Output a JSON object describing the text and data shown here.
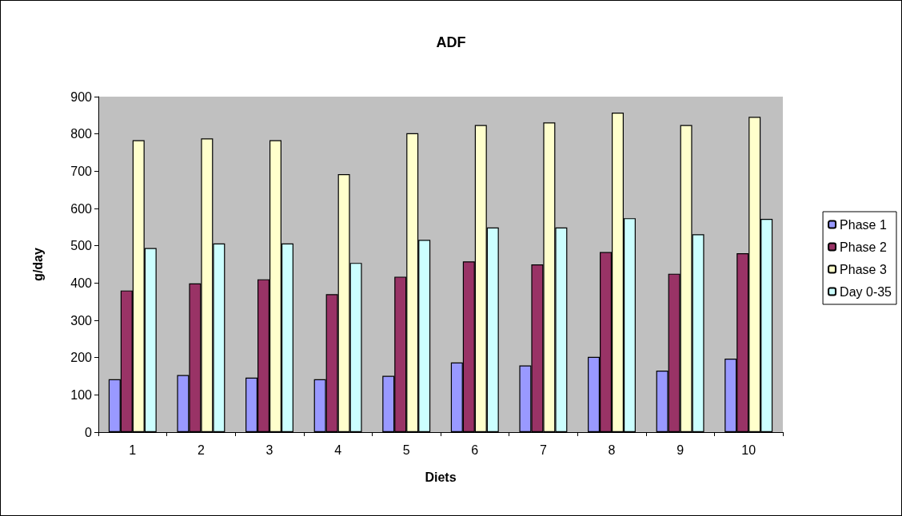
{
  "chart_data": {
    "type": "bar",
    "title": "ADF",
    "xlabel": "Diets",
    "ylabel": "g/day",
    "categories": [
      "1",
      "2",
      "3",
      "4",
      "5",
      "6",
      "7",
      "8",
      "9",
      "10"
    ],
    "series": [
      {
        "name": "Phase 1",
        "color": "#9999ff",
        "values": [
          142,
          153,
          146,
          142,
          151,
          187,
          179,
          202,
          165,
          197
        ]
      },
      {
        "name": "Phase 2",
        "color": "#993366",
        "values": [
          380,
          399,
          410,
          370,
          417,
          458,
          450,
          483,
          425,
          480
        ]
      },
      {
        "name": "Phase 3",
        "color": "#ffffcc",
        "values": [
          783,
          788,
          783,
          692,
          802,
          824,
          831,
          857,
          824,
          846
        ]
      },
      {
        "name": "Day 0-35",
        "color": "#ccffff",
        "values": [
          494,
          506,
          506,
          454,
          516,
          549,
          549,
          574,
          531,
          572
        ]
      }
    ],
    "ylim": [
      0,
      900
    ],
    "yticks": [
      0,
      100,
      200,
      300,
      400,
      500,
      600,
      700,
      800,
      900
    ],
    "grid": false,
    "legend": "right"
  }
}
